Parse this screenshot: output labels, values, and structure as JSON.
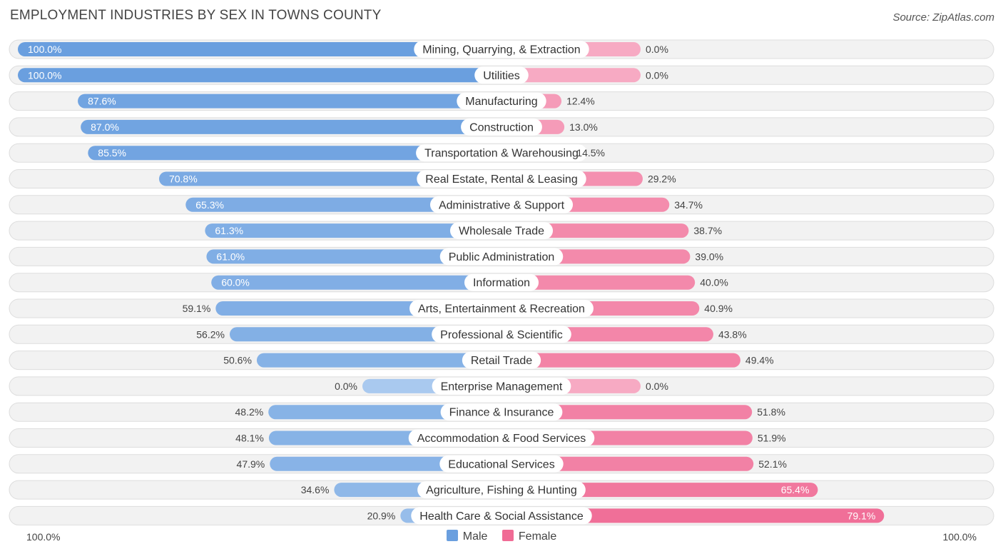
{
  "chart_data": {
    "type": "bar",
    "orientation": "horizontal-diverging",
    "title": "EMPLOYMENT INDUSTRIES BY SEX IN TOWNS COUNTY",
    "source": "Source: ZipAtlas.com",
    "axis_left_label": "100.0%",
    "axis_right_label": "100.0%",
    "xlim": [
      -100,
      100
    ],
    "categories": [
      "Mining, Quarrying, & Extraction",
      "Utilities",
      "Manufacturing",
      "Construction",
      "Transportation & Warehousing",
      "Real Estate, Rental & Leasing",
      "Administrative & Support",
      "Wholesale Trade",
      "Public Administration",
      "Information",
      "Arts, Entertainment & Recreation",
      "Professional & Scientific",
      "Retail Trade",
      "Enterprise Management",
      "Finance & Insurance",
      "Accommodation & Food Services",
      "Educational Services",
      "Agriculture, Fishing & Hunting",
      "Health Care & Social Assistance"
    ],
    "series": [
      {
        "name": "Male",
        "color": "#6a9fdf",
        "color_light": "#a9c9ef",
        "values": [
          100.0,
          100.0,
          87.6,
          87.0,
          85.5,
          70.8,
          65.3,
          61.3,
          61.0,
          60.0,
          59.1,
          56.2,
          50.6,
          0.0,
          48.2,
          48.1,
          47.9,
          34.6,
          20.9
        ],
        "labels": [
          "100.0%",
          "100.0%",
          "87.6%",
          "87.0%",
          "85.5%",
          "70.8%",
          "65.3%",
          "61.3%",
          "61.0%",
          "60.0%",
          "59.1%",
          "56.2%",
          "50.6%",
          "0.0%",
          "48.2%",
          "48.1%",
          "47.9%",
          "34.6%",
          "20.9%"
        ]
      },
      {
        "name": "Female",
        "color": "#f06b95",
        "color_light": "#f7aac3",
        "values": [
          0.0,
          0.0,
          12.4,
          13.0,
          14.5,
          29.2,
          34.7,
          38.7,
          39.0,
          40.0,
          40.9,
          43.8,
          49.4,
          0.0,
          51.8,
          51.9,
          52.1,
          65.4,
          79.1
        ],
        "labels": [
          "0.0%",
          "0.0%",
          "12.4%",
          "13.0%",
          "14.5%",
          "29.2%",
          "34.7%",
          "38.7%",
          "39.0%",
          "40.0%",
          "40.9%",
          "43.8%",
          "49.4%",
          "0.0%",
          "51.8%",
          "51.9%",
          "52.1%",
          "65.4%",
          "79.1%"
        ]
      }
    ],
    "legend": [
      "Male",
      "Female"
    ]
  }
}
